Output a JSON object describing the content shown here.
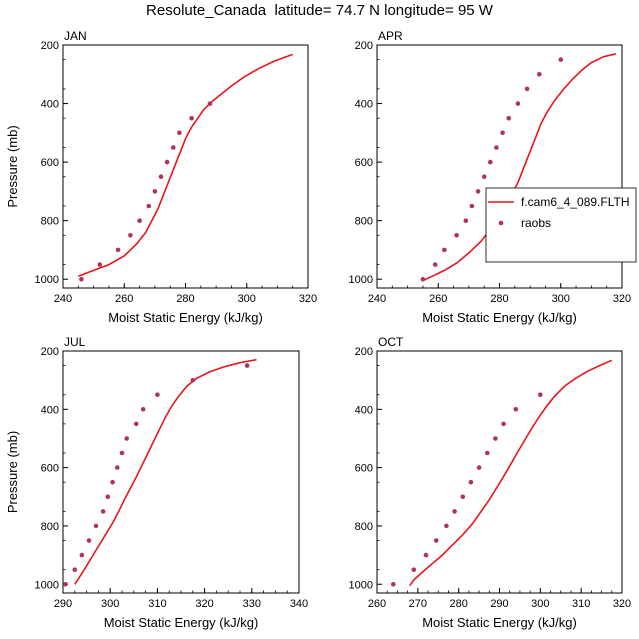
{
  "title": "Resolute_Canada  latitude= 74.7 N longitude= 95 W",
  "colors": {
    "model": "#e8151b",
    "obs": "#b0335c",
    "axis": "#000000"
  },
  "chart_data": [
    {
      "type": "line",
      "panel_title": "JAN",
      "xlabel": "Moist Static Energy (kJ/kg)",
      "ylabel": "Pressure (mb)",
      "xlim": [
        240,
        320
      ],
      "xticks": [
        240,
        260,
        280,
        300,
        320
      ],
      "ylim": [
        1030,
        200
      ],
      "yticks": [
        200,
        400,
        600,
        800,
        1000
      ],
      "show_legend": false,
      "series": [
        {
          "name": "f.cam6_4_089.FLTH",
          "kind": "line",
          "points": [
            [
              245,
              990
            ],
            [
              250,
              970
            ],
            [
              255,
              950
            ],
            [
              260,
              920
            ],
            [
              264,
              880
            ],
            [
              267,
              840
            ],
            [
              269,
              800
            ],
            [
              271,
              760
            ],
            [
              272.5,
              720
            ],
            [
              274,
              680
            ],
            [
              275.5,
              640
            ],
            [
              277,
              600
            ],
            [
              278.5,
              560
            ],
            [
              280,
              520
            ],
            [
              282,
              480
            ],
            [
              284,
              450
            ],
            [
              286,
              420
            ],
            [
              289,
              390
            ],
            [
              292,
              365
            ],
            [
              295,
              340
            ],
            [
              299,
              310
            ],
            [
              304,
              280
            ],
            [
              309,
              255
            ],
            [
              315,
              232
            ]
          ]
        },
        {
          "name": "raobs",
          "kind": "scatter",
          "points": [
            [
              246,
              1000
            ],
            [
              252,
              950
            ],
            [
              258,
              900
            ],
            [
              262,
              850
            ],
            [
              265,
              800
            ],
            [
              268,
              750
            ],
            [
              270,
              700
            ],
            [
              272,
              650
            ],
            [
              274,
              600
            ],
            [
              276,
              550
            ],
            [
              278,
              500
            ],
            [
              282,
              450
            ],
            [
              288,
              400
            ]
          ]
        }
      ]
    },
    {
      "type": "line",
      "panel_title": "APR",
      "xlabel": "Moist Static Energy (kJ/kg)",
      "ylabel": "",
      "xlim": [
        240,
        320
      ],
      "xticks": [
        240,
        260,
        280,
        300,
        320
      ],
      "ylim": [
        1030,
        200
      ],
      "yticks": [
        200,
        400,
        600,
        800,
        1000
      ],
      "show_legend": true,
      "series": [
        {
          "name": "f.cam6_4_089.FLTH",
          "kind": "line",
          "points": [
            [
              255,
              1005
            ],
            [
              258,
              990
            ],
            [
              262,
              970
            ],
            [
              266,
              945
            ],
            [
              270,
              910
            ],
            [
              274,
              870
            ],
            [
              277,
              830
            ],
            [
              280,
              790
            ],
            [
              282,
              750
            ],
            [
              284,
              710
            ],
            [
              286,
              670
            ],
            [
              287.5,
              630
            ],
            [
              289,
              590
            ],
            [
              290.5,
              550
            ],
            [
              292,
              510
            ],
            [
              293.5,
              470
            ],
            [
              295.5,
              430
            ],
            [
              298,
              390
            ],
            [
              301,
              350
            ],
            [
              304,
              315
            ],
            [
              307,
              285
            ],
            [
              310,
              260
            ],
            [
              314,
              240
            ],
            [
              318,
              230
            ]
          ]
        },
        {
          "name": "raobs",
          "kind": "scatter",
          "points": [
            [
              255,
              1000
            ],
            [
              259,
              950
            ],
            [
              262,
              900
            ],
            [
              266,
              850
            ],
            [
              269,
              800
            ],
            [
              271,
              750
            ],
            [
              273,
              700
            ],
            [
              275,
              650
            ],
            [
              277,
              600
            ],
            [
              279,
              550
            ],
            [
              281,
              500
            ],
            [
              283,
              450
            ],
            [
              286,
              400
            ],
            [
              289,
              350
            ],
            [
              293,
              300
            ],
            [
              300,
              250
            ]
          ]
        }
      ]
    },
    {
      "type": "line",
      "panel_title": "JUL",
      "xlabel": "Moist Static Energy (kJ/kg)",
      "ylabel": "Pressure (mb)",
      "xlim": [
        290,
        340
      ],
      "xticks": [
        290,
        300,
        310,
        320,
        330,
        340
      ],
      "ylim": [
        1030,
        200
      ],
      "yticks": [
        200,
        400,
        600,
        800,
        1000
      ],
      "show_legend": false,
      "series": [
        {
          "name": "f.cam6_4_089.FLTH",
          "kind": "line",
          "points": [
            [
              292.5,
              1000
            ],
            [
              293.3,
              980
            ],
            [
              294.5,
              950
            ],
            [
              296,
              910
            ],
            [
              297.5,
              870
            ],
            [
              299,
              830
            ],
            [
              300.5,
              790
            ],
            [
              301.8,
              750
            ],
            [
              303,
              710
            ],
            [
              304.3,
              670
            ],
            [
              305.6,
              630
            ],
            [
              306.8,
              590
            ],
            [
              308,
              550
            ],
            [
              309.2,
              510
            ],
            [
              310.4,
              470
            ],
            [
              311.6,
              430
            ],
            [
              313,
              390
            ],
            [
              314.5,
              355
            ],
            [
              316.3,
              320
            ],
            [
              318.2,
              295
            ],
            [
              321,
              272
            ],
            [
              324,
              255
            ],
            [
              327.5,
              240
            ],
            [
              331,
              230
            ]
          ]
        },
        {
          "name": "raobs",
          "kind": "scatter",
          "points": [
            [
              290.5,
              1000
            ],
            [
              292.5,
              950
            ],
            [
              294,
              900
            ],
            [
              295.5,
              850
            ],
            [
              297,
              800
            ],
            [
              298.5,
              750
            ],
            [
              299.5,
              700
            ],
            [
              300.5,
              650
            ],
            [
              301.5,
              600
            ],
            [
              302.5,
              550
            ],
            [
              303.5,
              500
            ],
            [
              305.5,
              450
            ],
            [
              307,
              400
            ],
            [
              310,
              350
            ],
            [
              317.5,
              300
            ],
            [
              329,
              250
            ]
          ]
        }
      ]
    },
    {
      "type": "line",
      "panel_title": "OCT",
      "xlabel": "Moist Static Energy (kJ/kg)",
      "ylabel": "",
      "xlim": [
        260,
        320
      ],
      "xticks": [
        260,
        270,
        280,
        290,
        300,
        310,
        320
      ],
      "ylim": [
        1030,
        200
      ],
      "yticks": [
        200,
        400,
        600,
        800,
        1000
      ],
      "show_legend": false,
      "series": [
        {
          "name": "f.cam6_4_089.FLTH",
          "kind": "line",
          "points": [
            [
              268,
              1005
            ],
            [
              269,
              985
            ],
            [
              271,
              960
            ],
            [
              273.5,
              930
            ],
            [
              276,
              900
            ],
            [
              278.5,
              865
            ],
            [
              281,
              830
            ],
            [
              283.5,
              790
            ],
            [
              285.5,
              750
            ],
            [
              287.5,
              710
            ],
            [
              289.3,
              670
            ],
            [
              291,
              630
            ],
            [
              292.7,
              590
            ],
            [
              294.3,
              550
            ],
            [
              296,
              510
            ],
            [
              297.7,
              470
            ],
            [
              299.5,
              430
            ],
            [
              301.5,
              390
            ],
            [
              303.5,
              355
            ],
            [
              306,
              320
            ],
            [
              308.5,
              295
            ],
            [
              311.5,
              270
            ],
            [
              314.5,
              250
            ],
            [
              317.5,
              232
            ]
          ]
        },
        {
          "name": "raobs",
          "kind": "scatter",
          "points": [
            [
              264,
              1000
            ],
            [
              269,
              950
            ],
            [
              272,
              900
            ],
            [
              274.5,
              850
            ],
            [
              277,
              800
            ],
            [
              279,
              750
            ],
            [
              281,
              700
            ],
            [
              283,
              650
            ],
            [
              285,
              600
            ],
            [
              287,
              550
            ],
            [
              289,
              500
            ],
            [
              291,
              450
            ],
            [
              294,
              400
            ],
            [
              300,
              350
            ]
          ]
        }
      ]
    }
  ]
}
